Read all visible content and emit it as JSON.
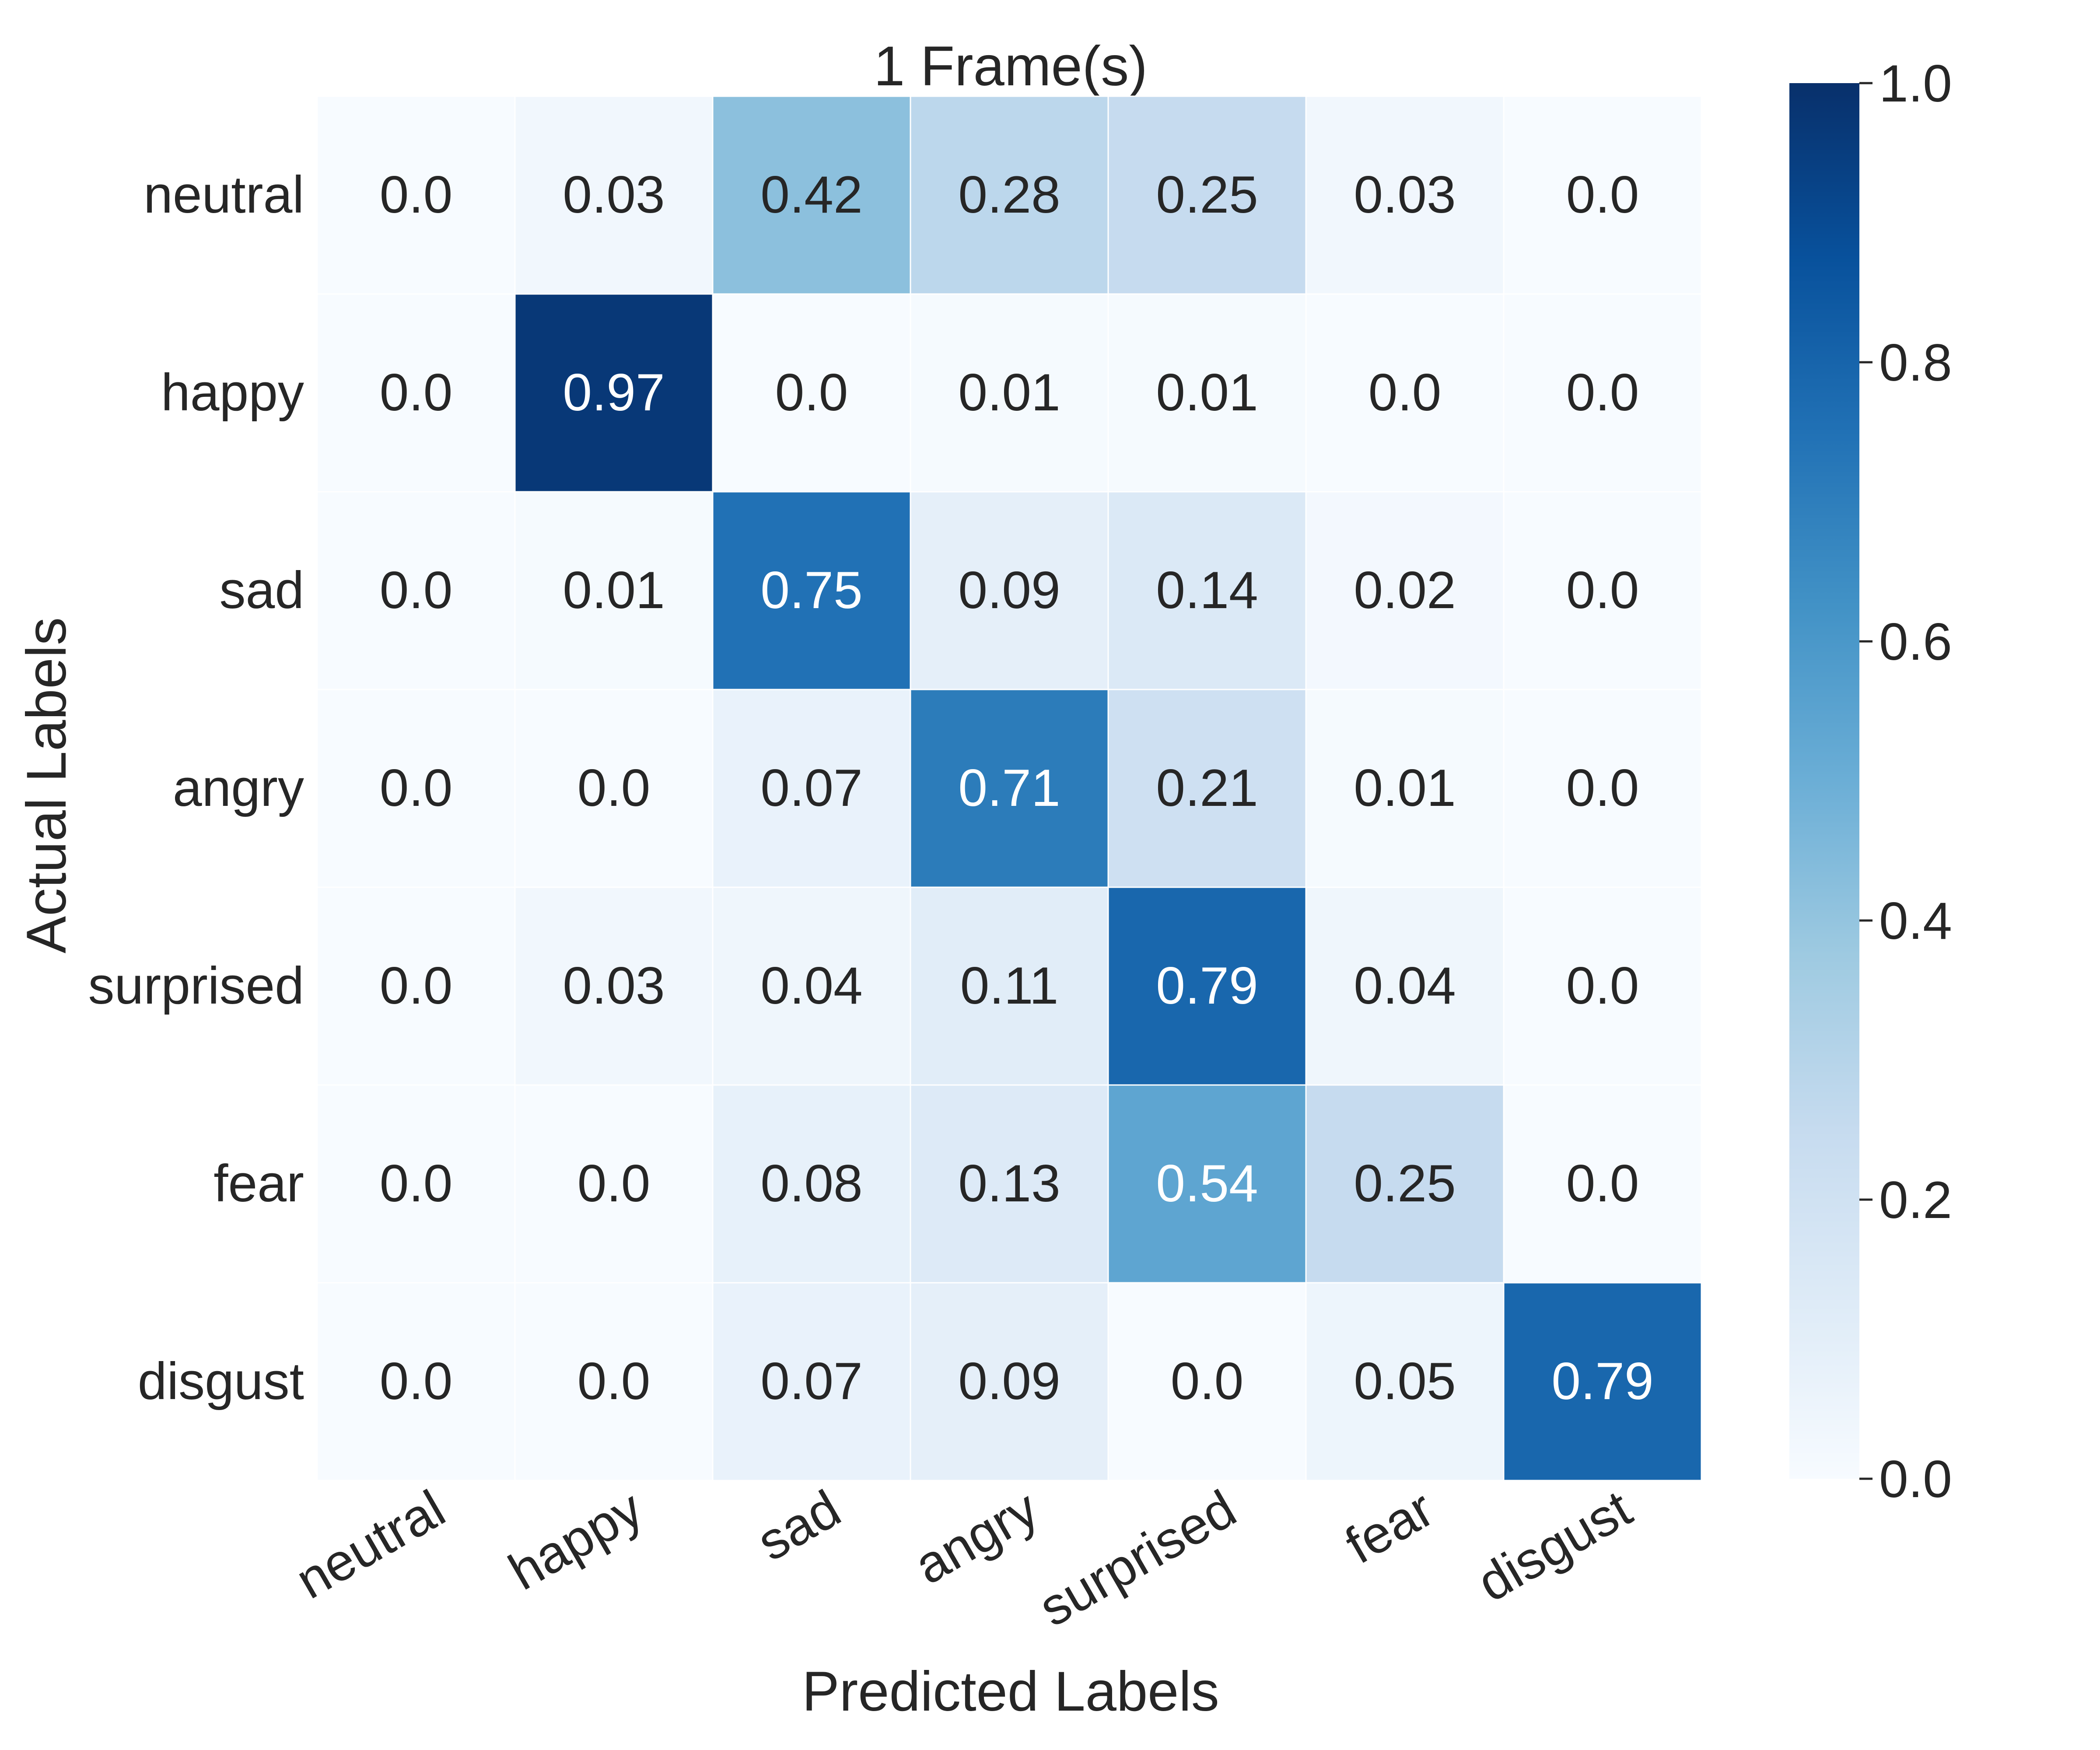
{
  "chart_data": {
    "type": "heatmap",
    "title": "1 Frame(s)",
    "xlabel": "Predicted Labels",
    "ylabel": "Actual Labels",
    "x_categories": [
      "neutral",
      "happy",
      "sad",
      "angry",
      "surprised",
      "fear",
      "disgust"
    ],
    "y_categories": [
      "neutral",
      "happy",
      "sad",
      "angry",
      "surprised",
      "fear",
      "disgust"
    ],
    "values": [
      [
        "0.0",
        "0.03",
        "0.42",
        "0.28",
        "0.25",
        "0.03",
        "0.0"
      ],
      [
        "0.0",
        "0.97",
        "0.0",
        "0.01",
        "0.01",
        "0.0",
        "0.0"
      ],
      [
        "0.0",
        "0.01",
        "0.75",
        "0.09",
        "0.14",
        "0.02",
        "0.0"
      ],
      [
        "0.0",
        "0.0",
        "0.07",
        "0.71",
        "0.21",
        "0.01",
        "0.0"
      ],
      [
        "0.0",
        "0.03",
        "0.04",
        "0.11",
        "0.79",
        "0.04",
        "0.0"
      ],
      [
        "0.0",
        "0.0",
        "0.08",
        "0.13",
        "0.54",
        "0.25",
        "0.0"
      ],
      [
        "0.0",
        "0.0",
        "0.07",
        "0.09",
        "0.0",
        "0.05",
        "0.79"
      ]
    ],
    "colorbar": {
      "range": [
        0,
        1
      ],
      "ticks": [
        "0.0",
        "0.2",
        "0.4",
        "0.6",
        "0.8",
        "1.0"
      ],
      "colormap": "Blues"
    },
    "colors": {
      "dark_text": "#262626",
      "light_text": "#ffffff",
      "cell_border": "#ffffff"
    }
  }
}
